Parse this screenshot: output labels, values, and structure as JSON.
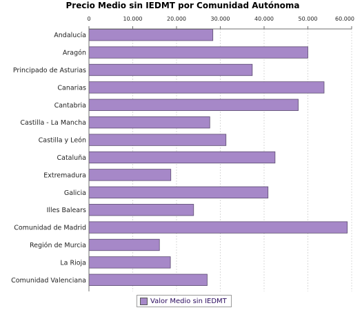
{
  "chart_data": {
    "type": "bar",
    "orientation": "horizontal",
    "title": "Precio Medio sin IEDMT por Comunidad Autónoma",
    "xlim": [
      0,
      60000
    ],
    "ticks": [
      "0",
      "10.000",
      "20.000",
      "30.000",
      "40.000",
      "50.000",
      "60.000"
    ],
    "tick_values": [
      0,
      10000,
      20000,
      30000,
      40000,
      50000,
      60000
    ],
    "axis_position": "top",
    "grid": true,
    "legend_position": "bottom",
    "categories": [
      "Andalucía",
      "Aragón",
      "Principado de Asturias",
      "Canarias",
      "Cantabria",
      "Castilla - La Mancha",
      "Castilla y León",
      "Cataluña",
      "Extremadura",
      "Galicia",
      "Illes Balears",
      "Comunidad de Madrid",
      "Región de Murcia",
      "La Rioja",
      "Comunidad Valenciana"
    ],
    "series": [
      {
        "name": "Valor Medio sin IEDMT",
        "color": "#a688c8",
        "values": [
          28300,
          50000,
          37300,
          53700,
          47800,
          27600,
          31300,
          42500,
          18700,
          40900,
          23900,
          59000,
          16100,
          18600,
          27000
        ]
      }
    ]
  }
}
